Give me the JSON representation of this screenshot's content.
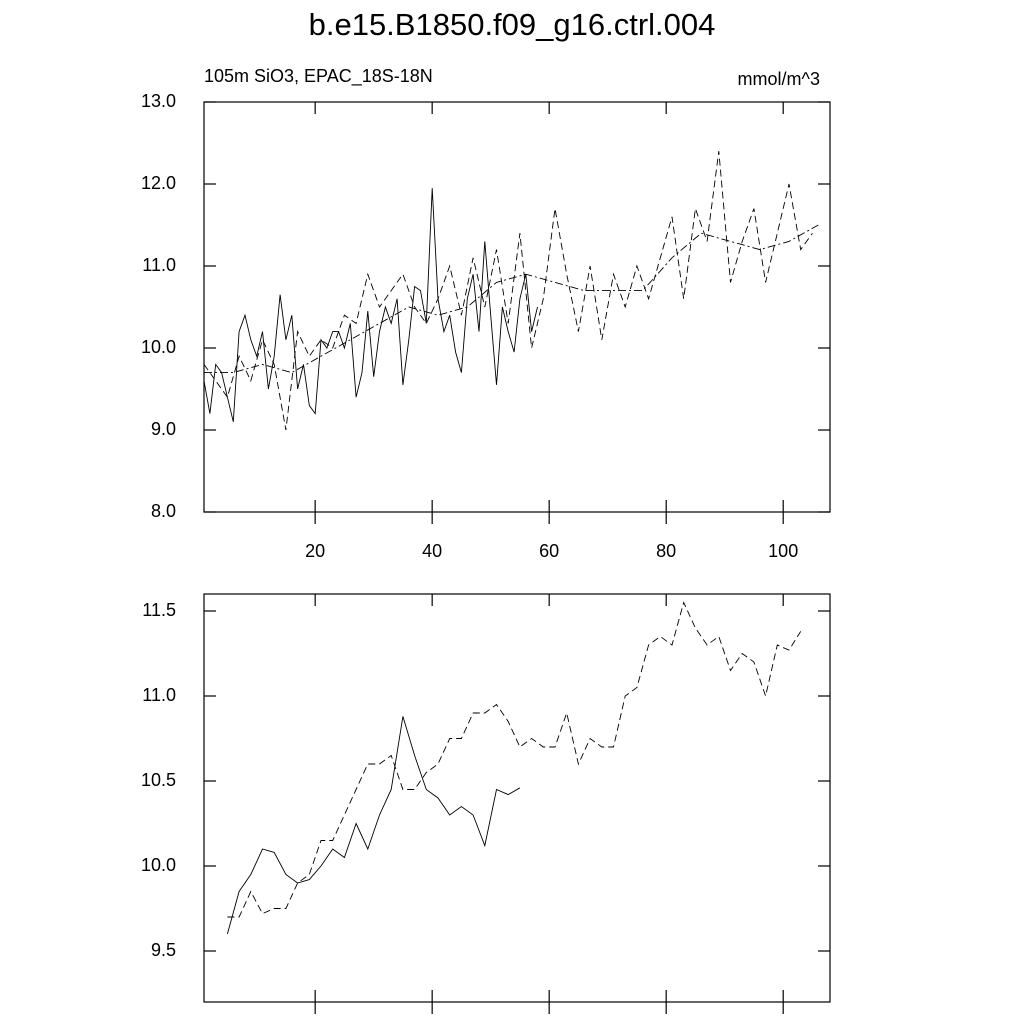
{
  "chart_data": [
    {
      "type": "line",
      "title": "b.e15.B1850.f09_g16.ctrl.004",
      "subtitle": "105m SiO3, EPAC_18S-18N",
      "units": "mmol/m^3",
      "xlim": [
        1,
        108
      ],
      "xticks": [
        20,
        40,
        60,
        80,
        100
      ],
      "show_xtick_labels": true,
      "ylim": [
        8,
        13
      ],
      "yticks": [
        {
          "value": 8,
          "label": "8.0"
        },
        {
          "value": 9,
          "label": "9.0"
        },
        {
          "value": 10,
          "label": "10.0"
        },
        {
          "value": 11,
          "label": "11.0"
        },
        {
          "value": 12,
          "label": "12.0"
        },
        {
          "value": 13,
          "label": "13.0"
        }
      ],
      "series": [
        {
          "color": "#000000",
          "dash": "none",
          "x": [
            1,
            2,
            3,
            4,
            5,
            6,
            7,
            8,
            9,
            10,
            11,
            12,
            13,
            14,
            15,
            16,
            17,
            18,
            19,
            20,
            21,
            22,
            23,
            24,
            25,
            26,
            27,
            28,
            29,
            30,
            31,
            32,
            33,
            34,
            35,
            36,
            37,
            38,
            39,
            40,
            41,
            42,
            43,
            44,
            45,
            46,
            47,
            48,
            49,
            50,
            51,
            52,
            53,
            54,
            55,
            56,
            57,
            58
          ],
          "values": [
            9.6,
            9.2,
            9.8,
            9.7,
            9.4,
            9.1,
            10.2,
            10.4,
            10.1,
            9.9,
            10.2,
            9.5,
            9.9,
            10.65,
            10.1,
            10.4,
            9.5,
            9.8,
            9.3,
            9.2,
            10.1,
            10.0,
            10.2,
            10.2,
            10.0,
            10.3,
            9.4,
            9.7,
            10.45,
            9.65,
            10.2,
            10.5,
            10.3,
            10.6,
            9.55,
            10.1,
            10.75,
            10.7,
            10.3,
            11.95,
            10.6,
            10.2,
            10.4,
            9.95,
            9.7,
            10.6,
            10.9,
            10.2,
            11.3,
            10.4,
            9.55,
            10.5,
            10.2,
            9.95,
            10.6,
            10.9,
            10.2,
            10.5
          ]
        },
        {
          "color": "#000000",
          "dash": "7,4",
          "x": [
            1,
            3,
            5,
            7,
            9,
            11,
            13,
            15,
            17,
            19,
            21,
            23,
            25,
            27,
            29,
            31,
            33,
            35,
            37,
            39,
            41,
            43,
            45,
            47,
            49,
            51,
            53,
            55,
            57,
            59,
            61,
            63,
            65,
            67,
            69,
            71,
            73,
            75,
            77,
            79,
            81,
            83,
            85,
            87,
            89,
            91,
            93,
            95,
            97,
            99,
            101,
            103,
            105
          ],
          "values": [
            9.8,
            9.6,
            9.4,
            9.9,
            9.6,
            10.1,
            9.8,
            9.0,
            10.2,
            9.9,
            10.1,
            10.0,
            10.4,
            10.3,
            10.9,
            10.5,
            10.7,
            10.9,
            10.5,
            10.3,
            10.6,
            11.0,
            10.4,
            11.1,
            10.5,
            11.2,
            10.3,
            11.4,
            10.0,
            10.6,
            11.7,
            10.9,
            10.2,
            11.0,
            10.1,
            10.9,
            10.5,
            11.0,
            10.6,
            11.1,
            11.6,
            10.6,
            11.7,
            11.3,
            12.4,
            10.8,
            11.3,
            11.7,
            10.8,
            11.4,
            12.0,
            11.2,
            11.4
          ]
        },
        {
          "color": "#000000",
          "dash": "8,3,2,3",
          "x": [
            1,
            6,
            11,
            16,
            21,
            26,
            31,
            36,
            41,
            46,
            51,
            56,
            61,
            66,
            71,
            76,
            81,
            86,
            91,
            96,
            101,
            106
          ],
          "values": [
            9.7,
            9.7,
            9.8,
            9.7,
            9.9,
            10.1,
            10.3,
            10.5,
            10.4,
            10.5,
            10.8,
            10.9,
            10.8,
            10.7,
            10.7,
            10.7,
            11.1,
            11.4,
            11.3,
            11.2,
            11.3,
            11.5
          ]
        }
      ]
    },
    {
      "type": "line",
      "xlim": [
        1,
        108
      ],
      "xticks": [
        20,
        40,
        60,
        80,
        100
      ],
      "show_xtick_labels": false,
      "ylim": [
        9.2,
        11.6
      ],
      "yticks": [
        {
          "value": 9.5,
          "label": "9.5"
        },
        {
          "value": 10,
          "label": "10.0"
        },
        {
          "value": 10.5,
          "label": "10.5"
        },
        {
          "value": 11,
          "label": "11.0"
        },
        {
          "value": 11.5,
          "label": "11.5"
        }
      ],
      "series": [
        {
          "color": "#000000",
          "dash": "none",
          "x": [
            5,
            7,
            9,
            11,
            13,
            15,
            17,
            19,
            21,
            23,
            25,
            27,
            29,
            31,
            33,
            35,
            37,
            39,
            41,
            43,
            45,
            47,
            49,
            51,
            53,
            55
          ],
          "values": [
            9.6,
            9.85,
            9.95,
            10.1,
            10.08,
            9.95,
            9.9,
            9.92,
            10.0,
            10.1,
            10.05,
            10.25,
            10.1,
            10.3,
            10.45,
            10.88,
            10.65,
            10.45,
            10.4,
            10.3,
            10.35,
            10.3,
            10.12,
            10.45,
            10.42,
            10.46
          ]
        },
        {
          "color": "#000000",
          "dash": "7,4",
          "x": [
            5,
            7,
            9,
            11,
            13,
            15,
            17,
            19,
            21,
            23,
            25,
            27,
            29,
            31,
            33,
            35,
            37,
            39,
            41,
            43,
            45,
            47,
            49,
            51,
            53,
            55,
            57,
            59,
            61,
            63,
            65,
            67,
            69,
            71,
            73,
            75,
            77,
            79,
            81,
            83,
            85,
            87,
            89,
            91,
            93,
            95,
            97,
            99,
            101,
            103
          ],
          "values": [
            9.7,
            9.7,
            9.85,
            9.72,
            9.75,
            9.75,
            9.9,
            9.95,
            10.15,
            10.15,
            10.3,
            10.45,
            10.6,
            10.6,
            10.65,
            10.45,
            10.45,
            10.55,
            10.6,
            10.75,
            10.75,
            10.9,
            10.9,
            10.95,
            10.85,
            10.7,
            10.75,
            10.7,
            10.7,
            10.9,
            10.6,
            10.75,
            10.7,
            10.7,
            11.0,
            11.05,
            11.3,
            11.35,
            11.3,
            11.55,
            11.4,
            11.3,
            11.35,
            11.15,
            11.25,
            11.2,
            11.0,
            11.3,
            11.27,
            11.38
          ]
        }
      ]
    }
  ]
}
